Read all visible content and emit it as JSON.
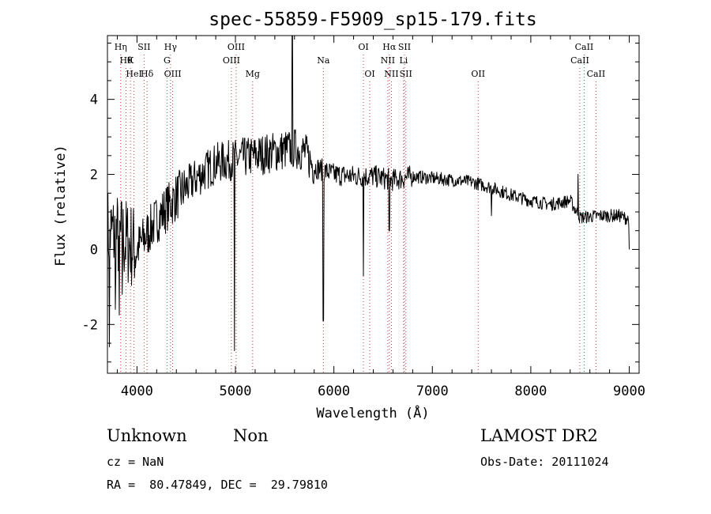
{
  "chart_data": {
    "type": "line",
    "title": "spec-55859-F5909_sp15-179.fits",
    "xlabel": "Wavelength (Å)",
    "ylabel": "Flux (relative)",
    "xlim": [
      3700,
      9100
    ],
    "ylim": [
      -3.3,
      5.7
    ],
    "xticks": [
      4000,
      5000,
      6000,
      7000,
      8000,
      9000
    ],
    "yticks": [
      -2,
      0,
      2,
      4
    ],
    "grid": false,
    "line_color": "#000000",
    "marker_color": "#cc3333",
    "continuum": [
      [
        3700,
        0.5
      ],
      [
        3900,
        0.2
      ],
      [
        4000,
        0.0
      ],
      [
        4200,
        0.8
      ],
      [
        4400,
        1.4
      ],
      [
        4600,
        1.9
      ],
      [
        4800,
        2.3
      ],
      [
        5000,
        2.4
      ],
      [
        5200,
        2.5
      ],
      [
        5400,
        2.6
      ],
      [
        5600,
        2.7
      ],
      [
        5700,
        2.6
      ],
      [
        5800,
        2.2
      ],
      [
        6000,
        2.0
      ],
      [
        6200,
        1.95
      ],
      [
        6400,
        1.95
      ],
      [
        6600,
        1.85
      ],
      [
        6800,
        1.95
      ],
      [
        7000,
        1.9
      ],
      [
        7200,
        1.85
      ],
      [
        7400,
        1.8
      ],
      [
        7600,
        1.65
      ],
      [
        7800,
        1.45
      ],
      [
        8000,
        1.3
      ],
      [
        8200,
        1.2
      ],
      [
        8400,
        1.3
      ],
      [
        8500,
        0.85
      ],
      [
        8700,
        0.9
      ],
      [
        8900,
        0.9
      ],
      [
        9000,
        0.8
      ]
    ],
    "features": [
      [
        3720,
        -2.6
      ],
      [
        3780,
        -1.6
      ],
      [
        3820,
        -1.75
      ],
      [
        3850,
        -1.2
      ],
      [
        4990,
        -2.7
      ],
      [
        5577,
        6.0
      ],
      [
        5893,
        -1.9
      ],
      [
        6300,
        -0.7
      ],
      [
        6563,
        0.5
      ],
      [
        7600,
        0.9
      ],
      [
        8480,
        2.0
      ],
      [
        9000,
        0.0
      ]
    ],
    "line_markers": [
      {
        "wavelength": 3835,
        "labels": [
          "Hη"
        ],
        "row": 0
      },
      {
        "wavelength": 3889,
        "labels": [
          "Hθ"
        ],
        "row": 1
      },
      {
        "wavelength": 3934,
        "labels": [
          "K"
        ],
        "row": 1
      },
      {
        "wavelength": 3970,
        "labels": [
          "HeI"
        ],
        "row": 2
      },
      {
        "wavelength": 4072,
        "labels": [
          "SII"
        ],
        "row": 0
      },
      {
        "wavelength": 4102,
        "labels": [
          "Hδ"
        ],
        "row": 2
      },
      {
        "wavelength": 4305,
        "labels": [
          "G"
        ],
        "row": 1
      },
      {
        "wavelength": 4341,
        "labels": [
          "Hγ"
        ],
        "row": 0
      },
      {
        "wavelength": 4363,
        "labels": [
          "OIII"
        ],
        "row": 2
      },
      {
        "wavelength": 4959,
        "labels": [
          "OIII"
        ],
        "row": 1
      },
      {
        "wavelength": 5007,
        "labels": [
          "OIII"
        ],
        "row": 0
      },
      {
        "wavelength": 5175,
        "labels": [
          "Mg"
        ],
        "row": 2
      },
      {
        "wavelength": 5893,
        "labels": [
          "Na"
        ],
        "row": 1
      },
      {
        "wavelength": 6300,
        "labels": [
          "OI"
        ],
        "row": 0
      },
      {
        "wavelength": 6364,
        "labels": [
          "OI"
        ],
        "row": 2
      },
      {
        "wavelength": 6548,
        "labels": [
          "NII"
        ],
        "row": 1
      },
      {
        "wavelength": 6563,
        "labels": [
          "Hα"
        ],
        "row": 0
      },
      {
        "wavelength": 6584,
        "labels": [
          "NII"
        ],
        "row": 2
      },
      {
        "wavelength": 6708,
        "labels": [
          "Li"
        ],
        "row": 1
      },
      {
        "wavelength": 6717,
        "labels": [
          "SII"
        ],
        "row": 0
      },
      {
        "wavelength": 6731,
        "labels": [
          "SII"
        ],
        "row": 2
      },
      {
        "wavelength": 7465,
        "labels": [
          "OII"
        ],
        "row": 2
      },
      {
        "wavelength": 8498,
        "labels": [
          "CaII"
        ],
        "row": 1
      },
      {
        "wavelength": 8542,
        "labels": [
          "CaII"
        ],
        "row": 0
      },
      {
        "wavelength": 8662,
        "labels": [
          "CaII"
        ],
        "row": 2
      }
    ]
  },
  "info": {
    "class": "Unknown",
    "subclass": "Non",
    "survey": "LAMOST DR2",
    "cz": "cz = NaN",
    "obs_date": "Obs-Date: 20111024",
    "coords": "RA =  80.47849, DEC =  29.79810"
  }
}
